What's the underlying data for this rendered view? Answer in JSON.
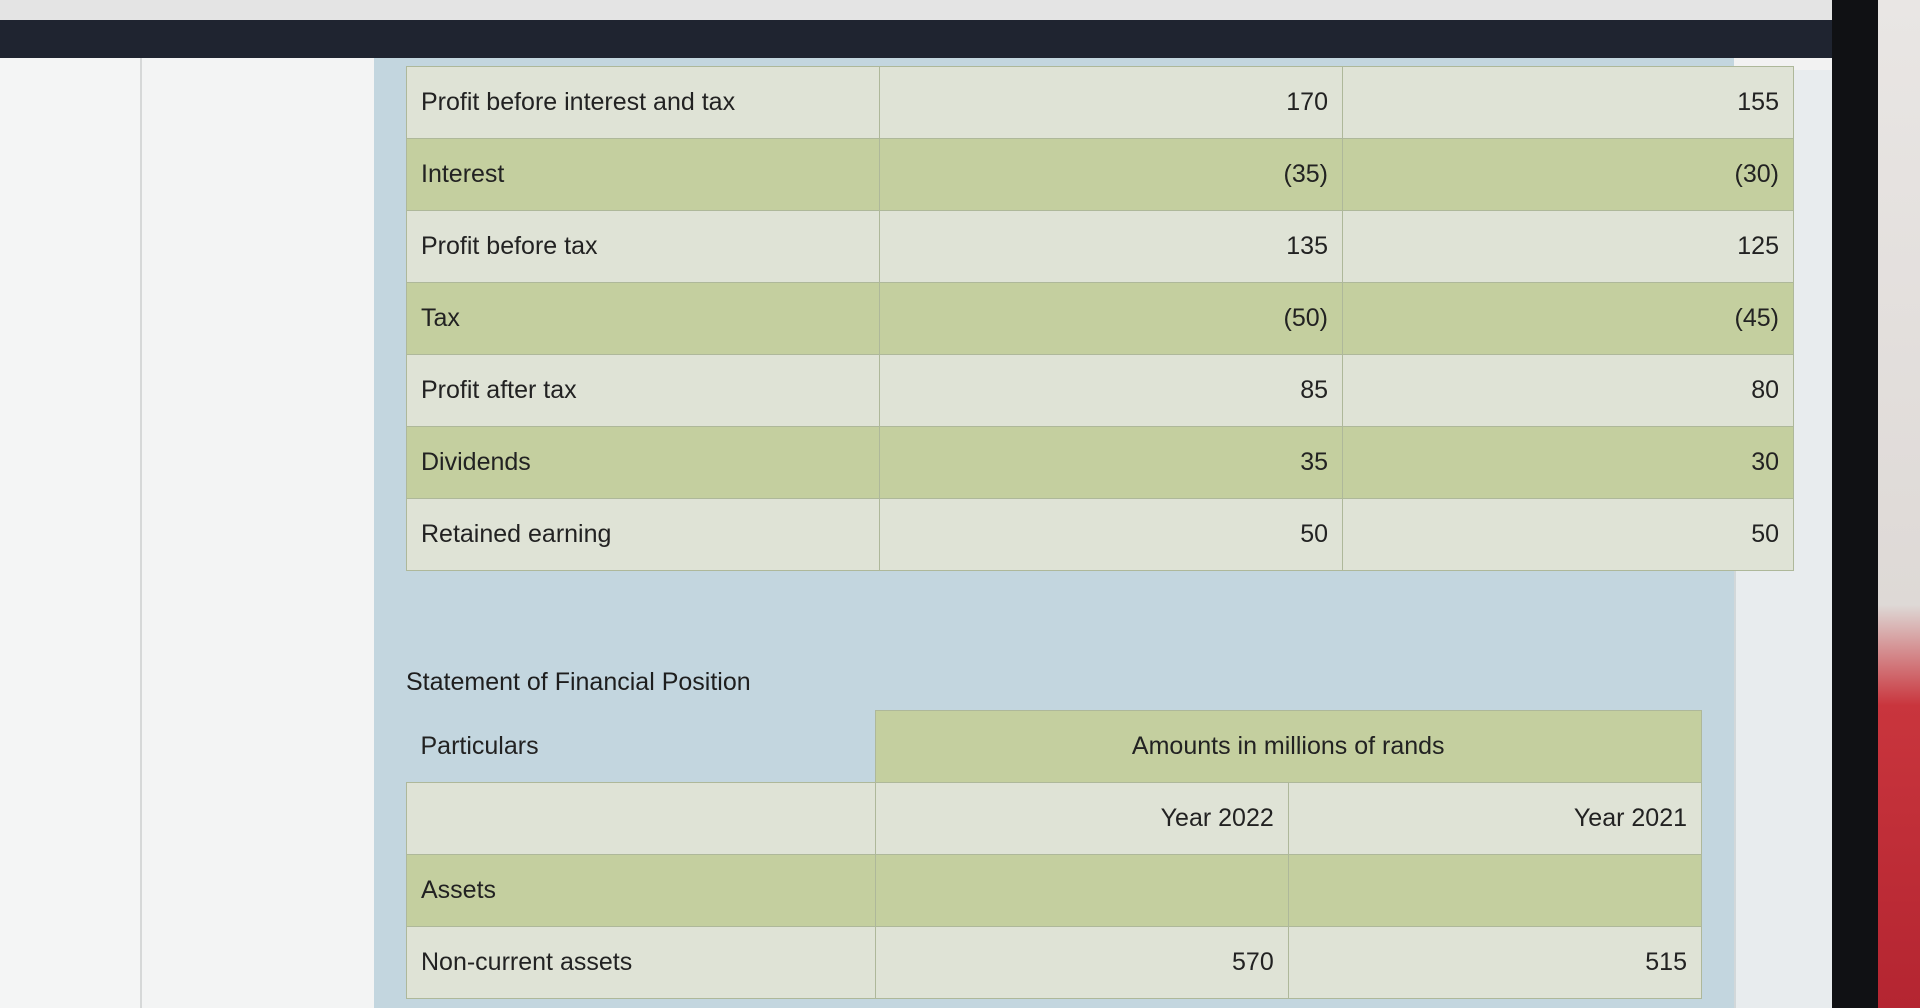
{
  "income_statement": {
    "rows": [
      {
        "label": "Profit before interest and tax",
        "y2022": "170",
        "y2021": "155"
      },
      {
        "label": "Interest",
        "y2022": "(35)",
        "y2021": "(30)"
      },
      {
        "label": "Profit before tax",
        "y2022": "135",
        "y2021": "125"
      },
      {
        "label": "Tax",
        "y2022": "(50)",
        "y2021": "(45)"
      },
      {
        "label": "Profit after tax",
        "y2022": "85",
        "y2021": "80"
      },
      {
        "label": "Dividends",
        "y2022": "35",
        "y2021": "30"
      },
      {
        "label": "Retained earning",
        "y2022": "50",
        "y2021": "50"
      }
    ]
  },
  "financial_position": {
    "title": "Statement of Financial Position",
    "particulars_label": "Particulars",
    "amounts_label": "Amounts in millions of rands",
    "year_2022": "Year 2022",
    "year_2021": "Year 2021",
    "rows": [
      {
        "label": "Assets",
        "y2022": "",
        "y2021": ""
      },
      {
        "label": "Non-current assets",
        "y2022": "570",
        "y2021": "515"
      }
    ]
  }
}
